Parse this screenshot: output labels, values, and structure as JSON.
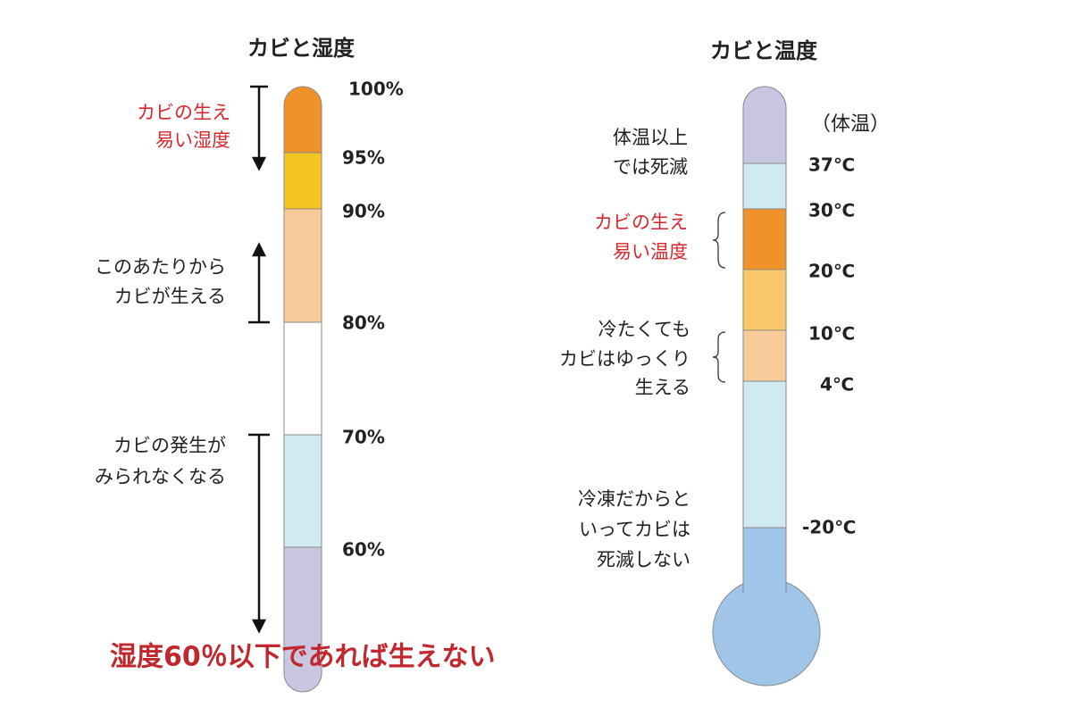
{
  "humidity": {
    "title": "カビと湿度",
    "levels": [
      "100%",
      "95%",
      "90%",
      "80%",
      "70%",
      "60%"
    ],
    "notes": [
      [
        "カビの生え",
        "易い湿度"
      ],
      [
        "このあたりから",
        "カビが生える"
      ],
      [
        "カビの発生が",
        "みられなくなる"
      ]
    ],
    "conclusion": "湿度60％以下であれば生えない"
  },
  "temperature": {
    "title": "カビと温度",
    "body_temp_label": "（体温）",
    "levels": [
      "37℃",
      "30℃",
      "20℃",
      "10℃",
      "4℃",
      "-20℃"
    ],
    "notes": [
      [
        "体温以上",
        "では死滅"
      ],
      [
        "カビの生え",
        "易い温度"
      ],
      [
        "冷たくても",
        "カビはゆっくり",
        "生える"
      ],
      [
        "冷凍だからと",
        "いってカビは",
        "死滅しない"
      ]
    ]
  }
}
